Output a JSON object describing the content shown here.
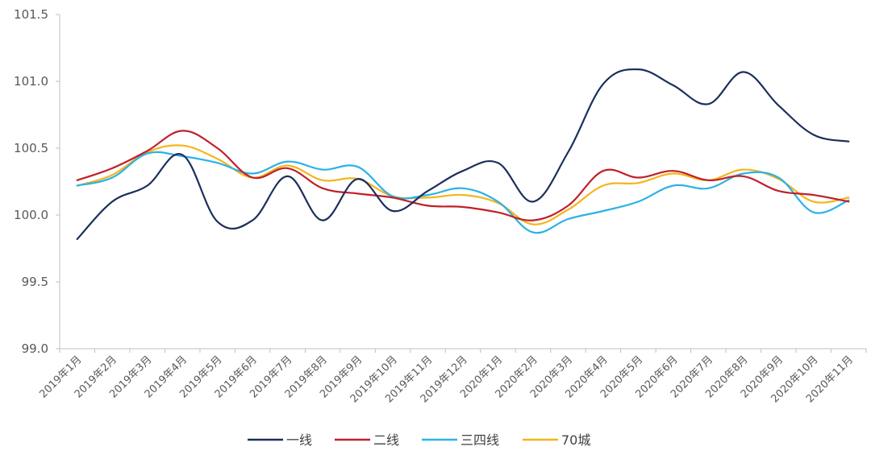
{
  "chart_data": {
    "type": "line",
    "title": "",
    "xlabel": "",
    "ylabel": "",
    "ylim": [
      99.0,
      101.5
    ],
    "yticks": [
      "99.0",
      "99.5",
      "100.0",
      "100.5",
      "101.0",
      "101.5"
    ],
    "grid": false,
    "legend_position": "bottom-center",
    "categories": [
      "2019年1月",
      "2019年2月",
      "2019年3月",
      "2019年4月",
      "2019年5月",
      "2019年6月",
      "2019年7月",
      "2019年8月",
      "2019年9月",
      "2019年10月",
      "2019年11月",
      "2019年12月",
      "2020年1月",
      "2020年2月",
      "2020年3月",
      "2020年4月",
      "2020年5月",
      "2020年6月",
      "2020年7月",
      "2020年8月",
      "2020年9月",
      "2020年10月",
      "2020年11月"
    ],
    "series": [
      {
        "name": "一线",
        "color": "#1b2f5c",
        "values": [
          99.82,
          100.1,
          100.22,
          100.45,
          99.95,
          99.96,
          100.29,
          99.96,
          100.27,
          100.03,
          100.18,
          100.33,
          100.39,
          100.1,
          100.47,
          100.98,
          101.09,
          100.97,
          100.83,
          101.07,
          100.82,
          100.6,
          100.55
        ]
      },
      {
        "name": "二线",
        "color": "#c0202a",
        "values": [
          100.26,
          100.35,
          100.48,
          100.63,
          100.5,
          100.28,
          100.35,
          100.2,
          100.16,
          100.13,
          100.07,
          100.06,
          100.02,
          99.96,
          100.07,
          100.33,
          100.28,
          100.33,
          100.26,
          100.29,
          100.18,
          100.15,
          100.1
        ]
      },
      {
        "name": "三四线",
        "color": "#2bb2e6",
        "values": [
          100.22,
          100.28,
          100.46,
          100.44,
          100.39,
          100.31,
          100.4,
          100.34,
          100.36,
          100.14,
          100.15,
          100.2,
          100.1,
          99.87,
          99.97,
          100.03,
          100.1,
          100.22,
          100.2,
          100.31,
          100.28,
          100.02,
          100.11
        ]
      },
      {
        "name": "70城",
        "color": "#f4b51c",
        "values": [
          100.22,
          100.3,
          100.47,
          100.52,
          100.42,
          100.28,
          100.37,
          100.26,
          100.27,
          100.14,
          100.13,
          100.15,
          100.09,
          99.93,
          100.04,
          100.22,
          100.24,
          100.31,
          100.26,
          100.34,
          100.27,
          100.1,
          100.13
        ]
      }
    ]
  }
}
